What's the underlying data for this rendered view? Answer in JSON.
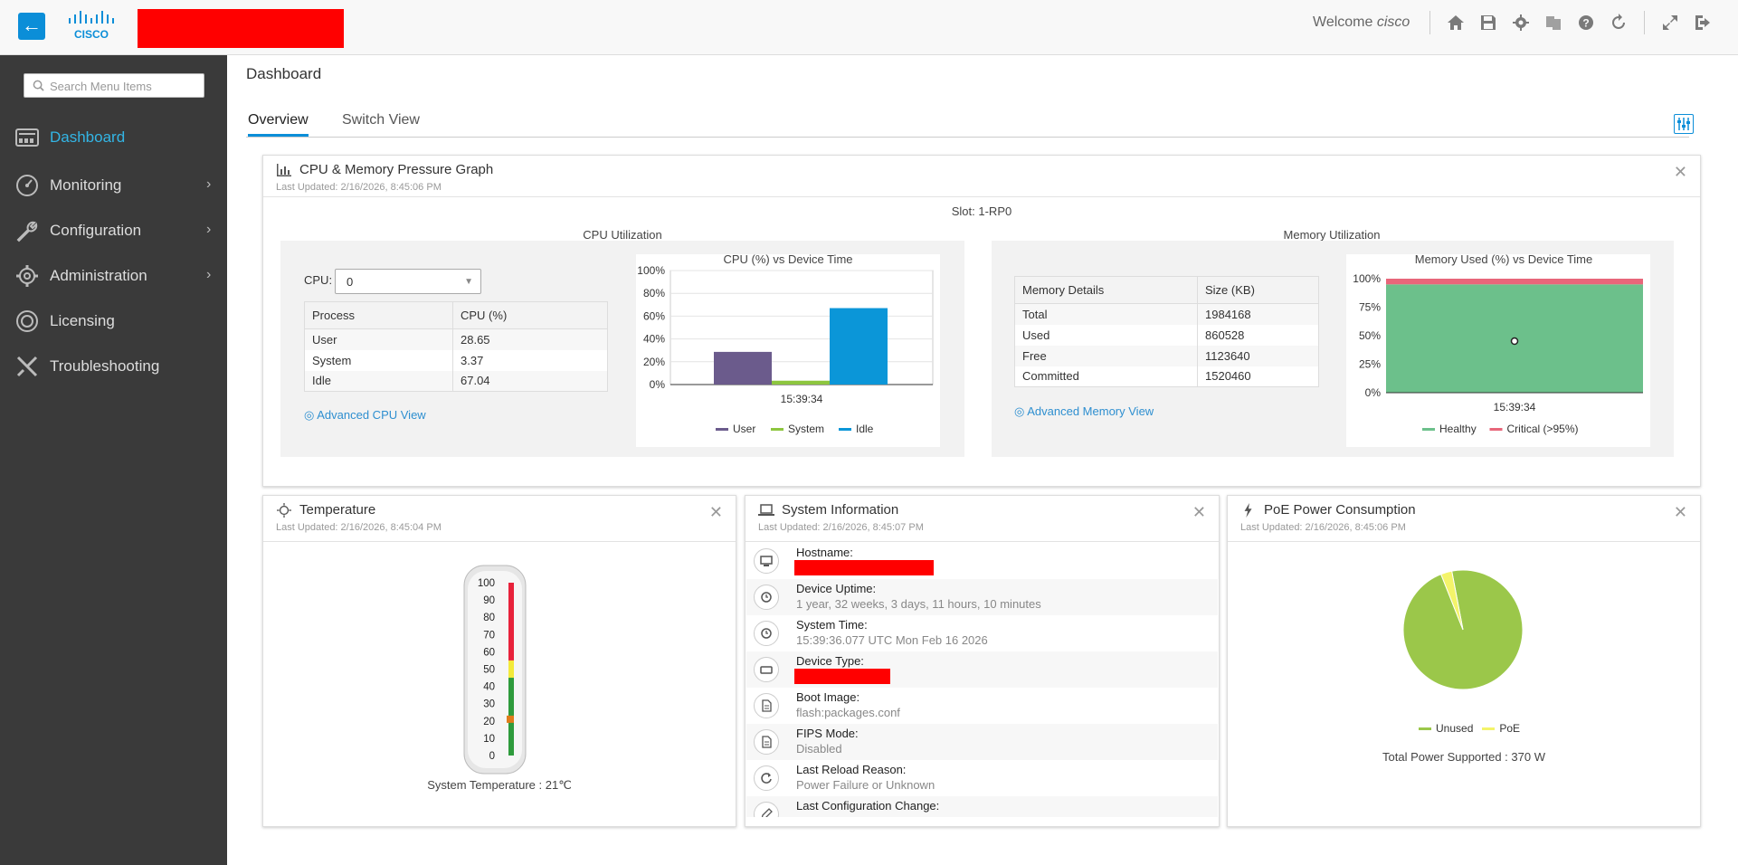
{
  "topbar": {
    "welcome_prefix": "Welcome",
    "user": "cisco",
    "logo_text": "CISCO",
    "icons": [
      "home-icon",
      "save-icon",
      "gear-icon",
      "translate-icon",
      "help-icon",
      "refresh-icon",
      "expand-icon",
      "logout-icon"
    ]
  },
  "sidebar": {
    "search_placeholder": "Search Menu Items",
    "items": [
      {
        "label": "Dashboard",
        "icon": "dashboard-icon",
        "active": true
      },
      {
        "label": "Monitoring",
        "icon": "gauge-icon",
        "chevron": "›"
      },
      {
        "label": "Configuration",
        "icon": "wrench-icon",
        "chevron": "›"
      },
      {
        "label": "Administration",
        "icon": "gear-icon",
        "chevron": "›"
      },
      {
        "label": "Licensing",
        "icon": "license-icon"
      },
      {
        "label": "Troubleshooting",
        "icon": "tools-icon"
      }
    ]
  },
  "page": {
    "title": "Dashboard",
    "tabs": [
      {
        "label": "Overview",
        "active": true
      },
      {
        "label": "Switch View"
      }
    ]
  },
  "cpu_panel": {
    "title": "CPU & Memory Pressure Graph",
    "updated": "Last Updated: 2/16/2026, 8:45:06 PM",
    "slot": "Slot: 1-RP0",
    "cpu_heading": "CPU Utilization",
    "mem_heading": "Memory Utilization",
    "cpu_label": "CPU:",
    "cpu_selected": "0",
    "process_table": {
      "headers": [
        "Process",
        "CPU (%)"
      ],
      "rows": [
        [
          "User",
          "28.65"
        ],
        [
          "System",
          "3.37"
        ],
        [
          "Idle",
          "67.04"
        ]
      ]
    },
    "memory_table": {
      "headers": [
        "Memory Details",
        "Size (KB)"
      ],
      "rows": [
        [
          "Total",
          "1984168"
        ],
        [
          "Used",
          "860528"
        ],
        [
          "Free",
          "1123640"
        ],
        [
          "Committed",
          "1520460"
        ]
      ]
    },
    "adv_cpu": "Advanced CPU View",
    "adv_mem": "Advanced Memory View"
  },
  "chart_data": [
    {
      "type": "bar",
      "title": "CPU (%) vs Device Time",
      "categories": [
        "15:39:34"
      ],
      "series": [
        {
          "name": "User",
          "values": [
            28.65
          ],
          "color": "#6b5b8c"
        },
        {
          "name": "System",
          "values": [
            3.37
          ],
          "color": "#8dc63f"
        },
        {
          "name": "Idle",
          "values": [
            67.04
          ],
          "color": "#0b96d8"
        }
      ],
      "yticks": [
        "100%",
        "80%",
        "60%",
        "40%",
        "20%",
        "0%"
      ],
      "ylim": [
        0,
        100
      ]
    },
    {
      "type": "area",
      "title": "Memory Used (%) vs Device Time",
      "categories": [
        "15:39:34"
      ],
      "series": [
        {
          "name": "Healthy",
          "values": [
            95
          ],
          "color": "#6cc08b"
        },
        {
          "name": "Critical (>95%)",
          "values": [
            5
          ],
          "color": "#e8667a"
        }
      ],
      "yticks": [
        "100%",
        "75%",
        "50%",
        "25%",
        "0%"
      ],
      "ylim": [
        0,
        100
      ]
    },
    {
      "type": "pie",
      "title": "",
      "categories": [
        "Unused",
        "PoE"
      ],
      "values": [
        97,
        3
      ],
      "colors": [
        "#9bc74a",
        "#f4f46a"
      ]
    }
  ],
  "temp_panel": {
    "title": "Temperature",
    "updated": "Last Updated: 2/16/2026, 8:45:04 PM",
    "scale": [
      "100",
      "90",
      "80",
      "70",
      "60",
      "50",
      "40",
      "30",
      "20",
      "10",
      "0"
    ],
    "reading": 21,
    "caption": "System Temperature : 21℃"
  },
  "sys_panel": {
    "title": "System Information",
    "updated": "Last Updated: 2/16/2026, 8:45:07 PM",
    "rows": [
      {
        "label": "Hostname:",
        "value": "",
        "icon": "monitor-icon"
      },
      {
        "label": "Device Uptime:",
        "value": "1 year, 32 weeks, 3 days, 11 hours, 10 minutes",
        "icon": "clock-icon"
      },
      {
        "label": "System Time:",
        "value": "15:39:36.077 UTC Mon Feb 16 2026",
        "icon": "clock-icon"
      },
      {
        "label": "Device Type:",
        "value": "",
        "icon": "device-icon"
      },
      {
        "label": "Boot Image:",
        "value": "flash:packages.conf",
        "icon": "file-icon"
      },
      {
        "label": "FIPS Mode:",
        "value": "Disabled",
        "icon": "file-icon"
      },
      {
        "label": "Last Reload Reason:",
        "value": "Power Failure or Unknown",
        "icon": "reload-icon"
      },
      {
        "label": "Last Configuration Change:",
        "value": "",
        "icon": "edit-icon"
      }
    ]
  },
  "poe_panel": {
    "title": "PoE Power Consumption",
    "updated": "Last Updated: 2/16/2026, 8:45:06 PM",
    "total": "Total Power Supported : 370 W"
  }
}
